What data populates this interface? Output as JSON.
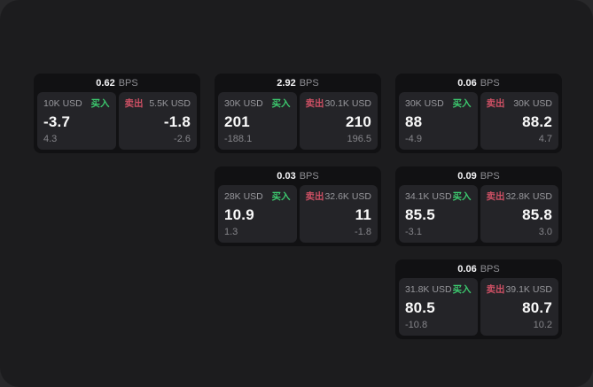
{
  "app": {
    "unit_label": "BPS",
    "buy_label": "买入",
    "sell_label": "卖出"
  },
  "colors": {
    "panel_bg": "#1c1c1e",
    "card_bg": "#111113",
    "tile_bg": "#242428",
    "buy_accent": "#3cc86e",
    "sell_accent": "#cd5064"
  },
  "cards": [
    {
      "bps": "0.62",
      "buy": {
        "amount": "10K USD",
        "price": "-3.7",
        "change": "4.3"
      },
      "sell": {
        "amount": "5.5K USD",
        "price": "-1.8",
        "change": "-2.6"
      }
    },
    {
      "bps": "2.92",
      "buy": {
        "amount": "30K USD",
        "price": "201",
        "change": "-188.1"
      },
      "sell": {
        "amount": "30.1K USD",
        "price": "210",
        "change": "196.5"
      }
    },
    {
      "bps": "0.06",
      "buy": {
        "amount": "30K USD",
        "price": "88",
        "change": "-4.9"
      },
      "sell": {
        "amount": "30K USD",
        "price": "88.2",
        "change": "4.7"
      }
    },
    {
      "bps": "0.03",
      "buy": {
        "amount": "28K USD",
        "price": "10.9",
        "change": "1.3"
      },
      "sell": {
        "amount": "32.6K USD",
        "price": "11",
        "change": "-1.8"
      }
    },
    {
      "bps": "0.09",
      "buy": {
        "amount": "34.1K USD",
        "price": "85.5",
        "change": "-3.1"
      },
      "sell": {
        "amount": "32.8K USD",
        "price": "85.8",
        "change": "3.0"
      }
    },
    {
      "bps": "0.06",
      "buy": {
        "amount": "31.8K USD",
        "price": "80.5",
        "change": "-10.8"
      },
      "sell": {
        "amount": "39.1K USD",
        "price": "80.7",
        "change": "10.2"
      }
    }
  ]
}
